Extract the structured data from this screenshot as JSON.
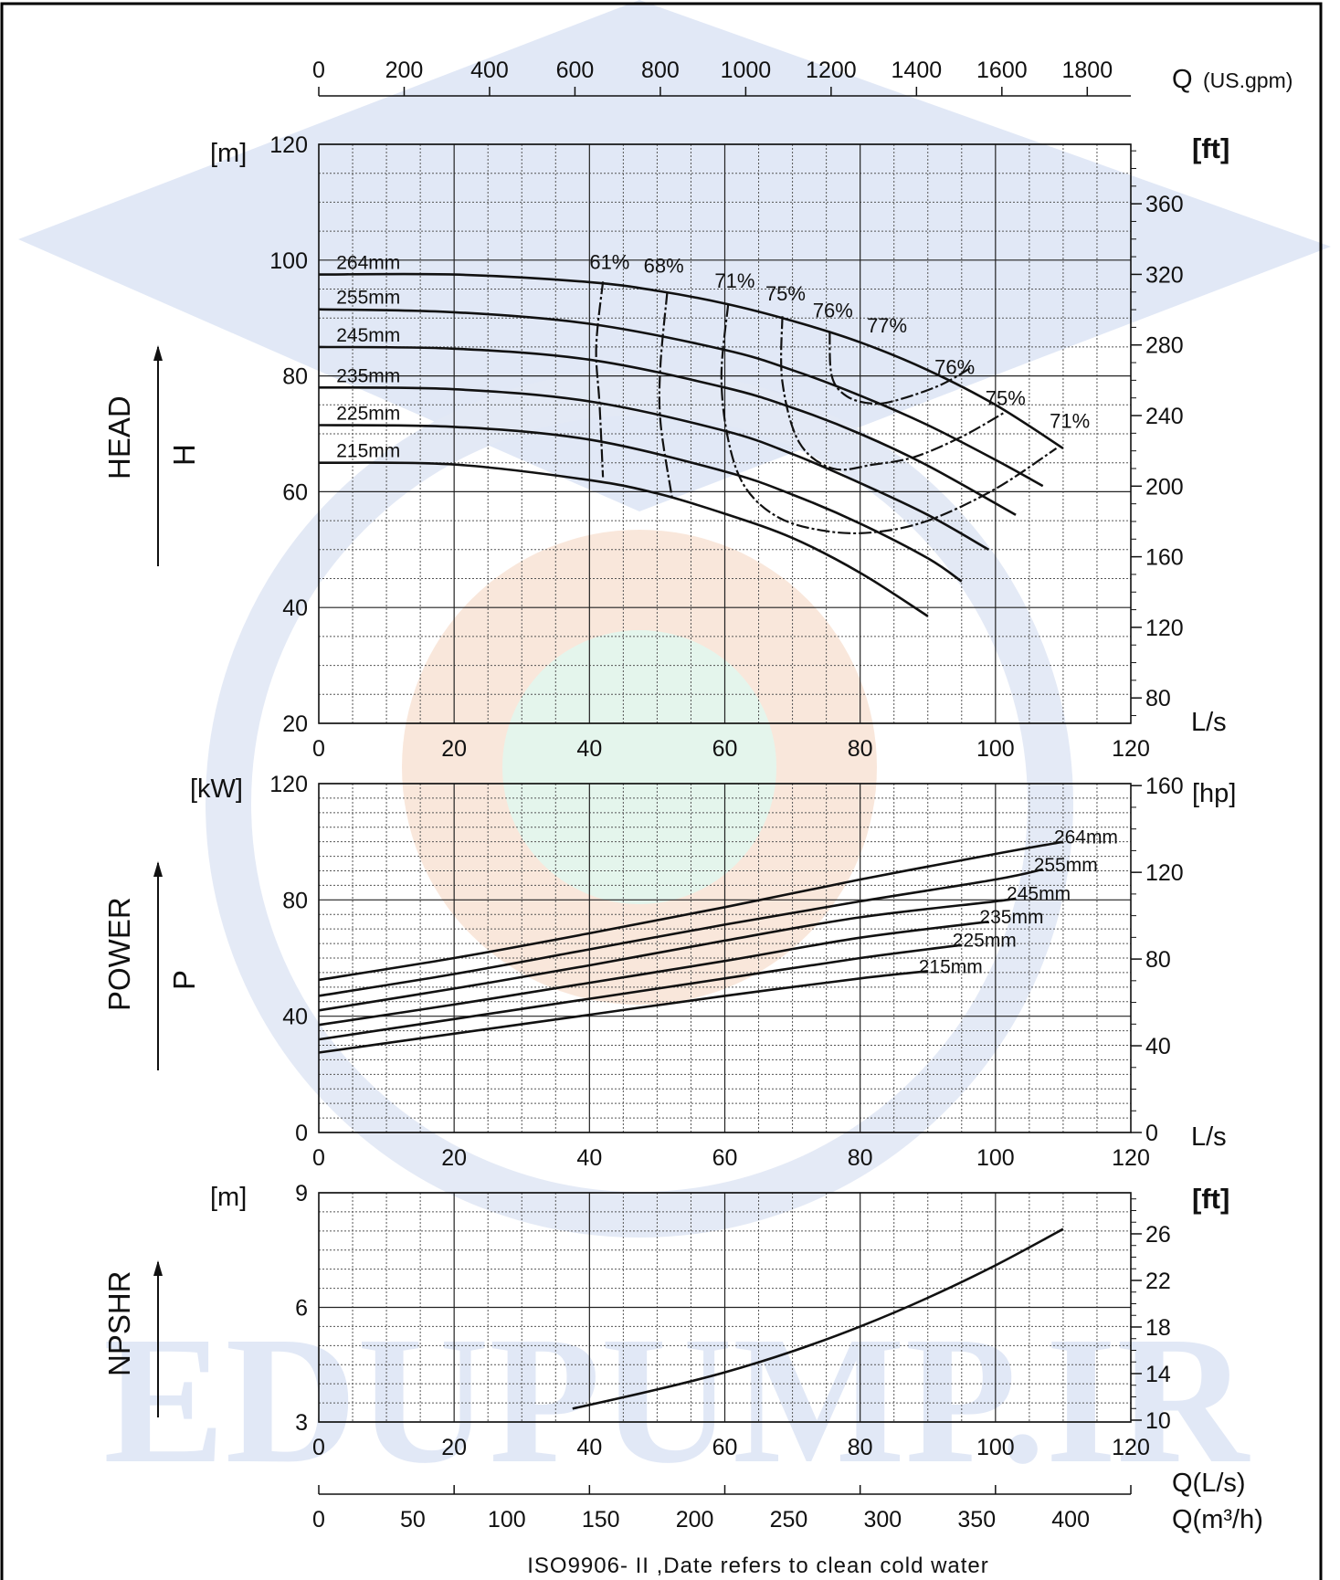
{
  "watermark": {
    "text": "EDUPUMP.IR"
  },
  "footer": {
    "note": "ISO9906- II ,Date refers to clean cold water"
  },
  "top_axis": {
    "label": "Q",
    "unit": "(US.gpm)",
    "ticks": [
      "0",
      "200",
      "400",
      "600",
      "800",
      "1000",
      "1200",
      "1400",
      "1600",
      "1800"
    ]
  },
  "bottom_axes": {
    "ls_label": "Q(L/s)",
    "m3h_label": "Q(m³/h)",
    "m3h_ticks": [
      "0",
      "50",
      "100",
      "150",
      "200",
      "250",
      "300",
      "350",
      "400"
    ]
  },
  "colors": {
    "curve": "#111111",
    "grid_major": "#222222",
    "grid_minor": "#555555",
    "watermark_blue": "#c9d6ef"
  },
  "chart_data": [
    {
      "type": "line",
      "name": "HEAD",
      "axis_title": "HEAD",
      "symbol": "H",
      "ylabel": "[m]",
      "y2label": "[ft]",
      "xlabel": "L/s",
      "xlim": [
        0,
        120
      ],
      "ylim": [
        20,
        120
      ],
      "x_ticks": [
        "0",
        "20",
        "40",
        "60",
        "80",
        "100",
        "120"
      ],
      "y_ticks": [
        "20",
        "40",
        "60",
        "80",
        "100",
        "120"
      ],
      "y2_ticks": [
        "80",
        "120",
        "160",
        "200",
        "240",
        "280",
        "320",
        "360"
      ],
      "grid": true,
      "series": [
        {
          "name": "264mm",
          "x": [
            0,
            20,
            40,
            50,
            60,
            70,
            80,
            90,
            100,
            110
          ],
          "y": [
            97.5,
            97.5,
            96.2,
            94.7,
            92.5,
            89.5,
            85.8,
            81,
            75,
            67.5
          ]
        },
        {
          "name": "255mm",
          "x": [
            0,
            20,
            40,
            60,
            70,
            80,
            90,
            100,
            107
          ],
          "y": [
            91.5,
            91,
            89,
            84.5,
            81,
            76.6,
            71.5,
            65.5,
            61
          ]
        },
        {
          "name": "245mm",
          "x": [
            0,
            20,
            40,
            60,
            70,
            80,
            90,
            103
          ],
          "y": [
            85,
            84.7,
            82.8,
            78,
            74.5,
            70,
            64.5,
            56
          ]
        },
        {
          "name": "235mm",
          "x": [
            0,
            20,
            40,
            60,
            70,
            80,
            90,
            99
          ],
          "y": [
            78,
            77.7,
            75.6,
            70.5,
            66.5,
            61.5,
            56,
            50
          ]
        },
        {
          "name": "225mm",
          "x": [
            0,
            20,
            40,
            60,
            70,
            80,
            90,
            95
          ],
          "y": [
            71.5,
            71.2,
            69,
            63.5,
            59.5,
            54.5,
            48.5,
            44.5
          ]
        },
        {
          "name": "215mm",
          "x": [
            0,
            20,
            40,
            50,
            60,
            70,
            80,
            90
          ],
          "y": [
            65,
            64.7,
            62,
            59.7,
            56.2,
            52,
            46,
            38.5
          ]
        }
      ],
      "efficiency_lines": [
        {
          "name": "61%",
          "x": [
            42,
            41,
            41.5,
            42
          ],
          "y": [
            96.3,
            85,
            75,
            62.5
          ]
        },
        {
          "name": "68%",
          "x": [
            51.5,
            50.5,
            50.5,
            52.2
          ],
          "y": [
            94.5,
            82,
            72,
            59
          ]
        },
        {
          "name": "71%",
          "x": [
            60.5,
            59.5,
            60.5,
            63,
            68,
            75,
            82,
            90,
            100,
            109
          ],
          "y": [
            92.4,
            80,
            69,
            60.8,
            55.5,
            53.2,
            53,
            55,
            60.5,
            67.5
          ]
        },
        {
          "name": "75%",
          "x": [
            68.5,
            68.5,
            71,
            76,
            82,
            88,
            95,
            101.5
          ],
          "y": [
            90.3,
            79,
            68.5,
            64,
            64.7,
            66,
            69.5,
            73.8
          ]
        },
        {
          "name": "76%",
          "x": [
            75.5,
            75.8,
            78,
            82,
            86,
            92,
            96.5
          ],
          "y": [
            87.6,
            80,
            76.5,
            75.2,
            76,
            78.5,
            81.5
          ]
        }
      ],
      "annotations": [
        "61%",
        "68%",
        "71%",
        "75%",
        "76%",
        "77%",
        "76%",
        "75%",
        "71%"
      ]
    },
    {
      "type": "line",
      "name": "POWER",
      "axis_title": "POWER",
      "symbol": "P",
      "ylabel": "[kW]",
      "y2label": "[hp]",
      "xlabel": "L/s",
      "xlim": [
        0,
        120
      ],
      "ylim": [
        0,
        120
      ],
      "x_ticks": [
        "0",
        "20",
        "40",
        "60",
        "80",
        "100",
        "120"
      ],
      "y_ticks": [
        "0",
        "40",
        "80",
        "120"
      ],
      "y2_ticks": [
        "0",
        "40",
        "80",
        "120",
        "160"
      ],
      "grid": true,
      "series": [
        {
          "name": "264mm",
          "x": [
            0,
            20,
            40,
            60,
            80,
            100,
            110
          ],
          "y": [
            52.5,
            60,
            68.5,
            77.5,
            87,
            95.8,
            100
          ]
        },
        {
          "name": "255mm",
          "x": [
            0,
            20,
            40,
            60,
            80,
            100,
            107
          ],
          "y": [
            47,
            54.5,
            63,
            71.5,
            79.5,
            87,
            90.5
          ]
        },
        {
          "name": "245mm",
          "x": [
            0,
            20,
            40,
            60,
            80,
            100,
            103
          ],
          "y": [
            42,
            49.5,
            57.5,
            66,
            74,
            79.5,
            80.5
          ]
        },
        {
          "name": "235mm",
          "x": [
            0,
            20,
            40,
            60,
            80,
            99
          ],
          "y": [
            37,
            44,
            51.5,
            59,
            67,
            72.5
          ]
        },
        {
          "name": "225mm",
          "x": [
            0,
            20,
            40,
            60,
            80,
            95
          ],
          "y": [
            32,
            39,
            46,
            53,
            60,
            64.5
          ]
        },
        {
          "name": "215mm",
          "x": [
            0,
            20,
            40,
            60,
            80,
            90
          ],
          "y": [
            27.5,
            34,
            40.5,
            47,
            53,
            55.5
          ]
        }
      ]
    },
    {
      "type": "line",
      "name": "NPSHR",
      "axis_title": "NPSHR",
      "ylabel": "[m]",
      "y2label": "[ft]",
      "xlim": [
        0,
        120
      ],
      "ylim": [
        3,
        9
      ],
      "x_ticks": [
        "0",
        "20",
        "40",
        "60",
        "80",
        "100",
        "120"
      ],
      "y_ticks": [
        "3",
        "6",
        "9"
      ],
      "y2_ticks": [
        "10",
        "14",
        "18",
        "22",
        "26"
      ],
      "grid": true,
      "series": [
        {
          "name": "NPSHR",
          "x": [
            37.5,
            50,
            60,
            70,
            80,
            90,
            100,
            110
          ],
          "y": [
            3.35,
            3.85,
            4.3,
            4.85,
            5.5,
            6.25,
            7.1,
            8.05
          ]
        }
      ]
    }
  ]
}
